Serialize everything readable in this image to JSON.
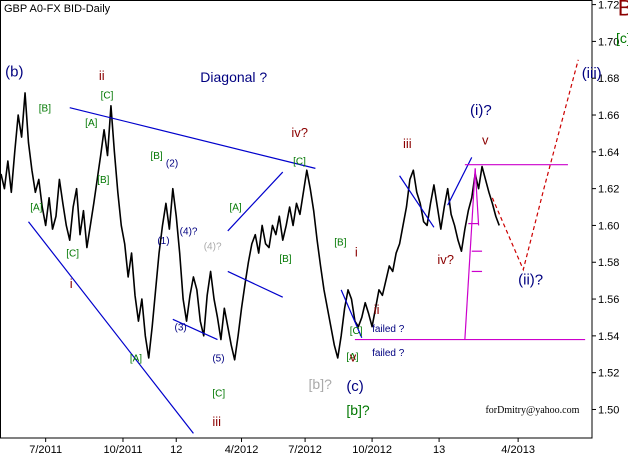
{
  "chart_data": {
    "type": "line",
    "title": "GBP A0-FX BID-Daily",
    "watermark": "forDmitry@yahoo.com",
    "ylim": [
      1.48,
      1.72
    ],
    "y_ticks": [
      "1.72",
      "1.70",
      "1.68",
      "1.66",
      "1.64",
      "1.62",
      "1.60",
      "1.58",
      "1.56",
      "1.54",
      "1.52",
      "1.50"
    ],
    "x_ticks": [
      "7/2011",
      "10/2011",
      "12",
      "4/2012",
      "7/2012",
      "10/2012",
      "13",
      "4/2013"
    ],
    "colors": {
      "price": "#000000",
      "blue": "#0000cc",
      "magenta": "#cc00cc",
      "red": "#cc0000",
      "green": "#007700",
      "navy": "#000080",
      "darkred": "#8b0000",
      "gray": "#aaaaaa"
    },
    "series": [
      {
        "values": [
          1.628,
          1.62,
          1.635,
          1.618,
          1.64,
          1.66,
          1.648,
          1.672,
          1.645,
          1.63,
          1.618,
          1.625,
          1.61,
          1.6,
          1.615,
          1.598,
          1.605,
          1.625,
          1.612,
          1.6,
          1.592,
          1.61,
          1.62,
          1.595,
          1.608,
          1.588,
          1.6,
          1.612,
          1.625,
          1.638,
          1.652,
          1.638,
          1.665,
          1.64,
          1.618,
          1.6,
          1.59,
          1.572,
          1.585,
          1.562,
          1.548,
          1.56,
          1.54,
          1.528,
          1.545,
          1.565,
          1.585,
          1.6,
          1.612,
          1.598,
          1.62,
          1.605,
          1.585,
          1.56,
          1.548,
          1.562,
          1.572,
          1.565,
          1.548,
          1.54,
          1.562,
          1.575,
          1.56,
          1.55,
          1.538,
          1.555,
          1.545,
          1.535,
          1.527,
          1.54,
          1.555,
          1.568,
          1.58,
          1.59,
          1.595,
          1.585,
          1.6,
          1.59,
          1.588,
          1.6,
          1.595,
          1.605,
          1.592,
          1.6,
          1.61,
          1.6,
          1.612,
          1.606,
          1.618,
          1.63,
          1.62,
          1.608,
          1.592,
          1.578,
          1.565,
          1.555,
          1.545,
          1.535,
          1.528,
          1.54,
          1.555,
          1.565,
          1.56,
          1.548,
          1.545,
          1.55,
          1.558,
          1.552,
          1.545,
          1.555,
          1.565,
          1.562,
          1.57,
          1.578,
          1.575,
          1.585,
          1.59,
          1.6,
          1.61,
          1.625,
          1.63,
          1.618,
          1.612,
          1.602,
          1.6,
          1.612,
          1.622,
          1.61,
          1.598,
          1.61,
          1.62,
          1.606,
          1.6,
          1.592,
          1.586,
          1.598,
          1.608,
          1.615,
          1.628,
          1.62,
          1.632,
          1.625,
          1.618,
          1.612,
          1.605,
          1.6
        ]
      }
    ],
    "annotations": [
      {
        "text": "(b)",
        "x": 1.2,
        "y": 1.681,
        "color": "navy",
        "size": 15
      },
      {
        "text": "ii",
        "x": 28.5,
        "y": 1.679,
        "color": "darkred",
        "size": 13
      },
      {
        "text": "[C]",
        "x": 29,
        "y": 1.669,
        "color": "green",
        "size": 10
      },
      {
        "text": "[B]",
        "x": 11,
        "y": 1.662,
        "color": "green",
        "size": 10
      },
      {
        "text": "[A]",
        "x": 24.5,
        "y": 1.654,
        "color": "green",
        "size": 10
      },
      {
        "text": "[B]",
        "x": 28,
        "y": 1.623,
        "color": "green",
        "size": 10
      },
      {
        "text": "[A]",
        "x": 8.5,
        "y": 1.608,
        "color": "green",
        "size": 10
      },
      {
        "text": "[C]",
        "x": 19,
        "y": 1.583,
        "color": "green",
        "size": 10
      },
      {
        "text": "i",
        "x": 20,
        "y": 1.566,
        "color": "darkred",
        "size": 13
      },
      {
        "text": "Diagonal ?",
        "x": 58,
        "y": 1.678,
        "color": "navy",
        "size": 14
      },
      {
        "text": "[B]",
        "x": 43.5,
        "y": 1.636,
        "color": "green",
        "size": 10
      },
      {
        "text": "(2)",
        "x": 48,
        "y": 1.632,
        "color": "navy",
        "size": 10
      },
      {
        "text": "(1)",
        "x": 45.5,
        "y": 1.59,
        "color": "navy",
        "size": 10
      },
      {
        "text": "(4)?",
        "x": 52,
        "y": 1.595,
        "color": "navy",
        "size": 10
      },
      {
        "text": "(4)?",
        "x": 59,
        "y": 1.587,
        "color": "gray",
        "size": 10
      },
      {
        "text": "[A]",
        "x": 37.5,
        "y": 1.526,
        "color": "green",
        "size": 10
      },
      {
        "text": "(3)",
        "x": 50.5,
        "y": 1.543,
        "color": "navy",
        "size": 10
      },
      {
        "text": "(5)",
        "x": 61.5,
        "y": 1.526,
        "color": "navy",
        "size": 10
      },
      {
        "text": "[C]",
        "x": 61.5,
        "y": 1.507,
        "color": "green",
        "size": 10
      },
      {
        "text": "iii",
        "x": 61.5,
        "y": 1.491,
        "color": "darkred",
        "size": 13
      },
      {
        "text": "[A]",
        "x": 66.5,
        "y": 1.608,
        "color": "green",
        "size": 10
      },
      {
        "text": "[B]",
        "x": 81,
        "y": 1.58,
        "color": "green",
        "size": 10
      },
      {
        "text": "iv?",
        "x": 84.5,
        "y": 1.648,
        "color": "darkred",
        "size": 13
      },
      {
        "text": "[C]",
        "x": 85,
        "y": 1.633,
        "color": "green",
        "size": 10
      },
      {
        "text": "[B]",
        "x": 97,
        "y": 1.589,
        "color": "green",
        "size": 10
      },
      {
        "text": "i",
        "x": 103,
        "y": 1.583,
        "color": "darkred",
        "size": 13
      },
      {
        "text": "ii",
        "x": 108.5,
        "y": 1.552,
        "color": "darkred",
        "size": 13
      },
      {
        "text": "[A]",
        "x": 100.5,
        "y": 1.527,
        "color": "green",
        "size": 10
      },
      {
        "text": "[C]",
        "x": 101.5,
        "y": 1.541,
        "color": "green",
        "size": 10
      },
      {
        "text": "v",
        "x": 101.5,
        "y": 1.526,
        "color": "darkred",
        "size": 13
      },
      {
        "text": "(c)",
        "x": 100.5,
        "y": 1.51,
        "color": "navy",
        "size": 15
      },
      {
        "text": "[b]?",
        "x": 89.5,
        "y": 1.511,
        "color": "gray",
        "size": 14
      },
      {
        "text": "[b]?",
        "x": 100.5,
        "y": 1.497,
        "color": "green",
        "size": 14
      },
      {
        "text": "failed ?",
        "x": 108,
        "y": 1.542,
        "color": "navy",
        "size": 10
      },
      {
        "text": "failed ?",
        "x": 108,
        "y": 1.529,
        "color": "navy",
        "size": 10
      },
      {
        "text": "iii",
        "x": 117,
        "y": 1.642,
        "color": "darkred",
        "size": 13
      },
      {
        "text": "iv?",
        "x": 127,
        "y": 1.579,
        "color": "darkred",
        "size": 13
      },
      {
        "text": "(i)?",
        "x": 136.5,
        "y": 1.66,
        "color": "navy",
        "size": 15
      },
      {
        "text": "v",
        "x": 140,
        "y": 1.644,
        "color": "darkred",
        "size": 13
      },
      {
        "text": "(ii)?",
        "x": 150.5,
        "y": 1.568,
        "color": "navy",
        "size": 15
      },
      {
        "text": "(iii)",
        "x": 169,
        "y": 1.68,
        "color": "navy",
        "size": 15
      },
      {
        "text": "B",
        "x": 179.5,
        "y": 1.714,
        "color": "darkred",
        "size": 22
      },
      {
        "text": "[c]",
        "x": 179,
        "y": 1.699,
        "color": "green",
        "size": 14
      }
    ],
    "lines": [
      {
        "color": "blue",
        "from": [
          20,
          1.664
        ],
        "to": [
          91.5,
          1.631
        ]
      },
      {
        "color": "blue",
        "from": [
          8,
          1.602
        ],
        "to": [
          56,
          1.487
        ]
      },
      {
        "color": "blue",
        "from": [
          50,
          1.549
        ],
        "to": [
          63,
          1.538
        ]
      },
      {
        "color": "blue",
        "from": [
          66,
          1.575
        ],
        "to": [
          82,
          1.561
        ]
      },
      {
        "color": "blue",
        "from": [
          66,
          1.597
        ],
        "to": [
          82,
          1.629
        ]
      },
      {
        "color": "blue",
        "from": [
          99,
          1.565
        ],
        "to": [
          105,
          1.539
        ]
      },
      {
        "color": "blue",
        "from": [
          116,
          1.627
        ],
        "to": [
          126,
          1.599
        ]
      },
      {
        "color": "blue",
        "from": [
          130,
          1.611
        ],
        "to": [
          137,
          1.637
        ]
      },
      {
        "color": "magenta",
        "from": [
          135,
          1.633
        ],
        "to": [
          165,
          1.633
        ]
      },
      {
        "color": "magenta",
        "from": [
          103,
          1.538
        ],
        "to": [
          170,
          1.538
        ]
      },
      {
        "color": "magenta",
        "from": [
          135,
          1.538
        ],
        "to": [
          138,
          1.631
        ]
      },
      {
        "color": "magenta",
        "from": [
          138,
          1.631
        ],
        "to": [
          139,
          1.6
        ]
      },
      {
        "color": "magenta",
        "from": [
          137,
          1.575
        ],
        "to": [
          140,
          1.575
        ]
      },
      {
        "color": "magenta",
        "from": [
          137,
          1.586
        ],
        "to": [
          140,
          1.586
        ]
      },
      {
        "color": "magenta",
        "from": [
          136,
          1.601
        ],
        "to": [
          139,
          1.601
        ]
      }
    ],
    "projection": [
      [
        143,
        1.615
      ],
      [
        152,
        1.576
      ],
      [
        158,
        1.62
      ],
      [
        168,
        1.69
      ]
    ]
  }
}
